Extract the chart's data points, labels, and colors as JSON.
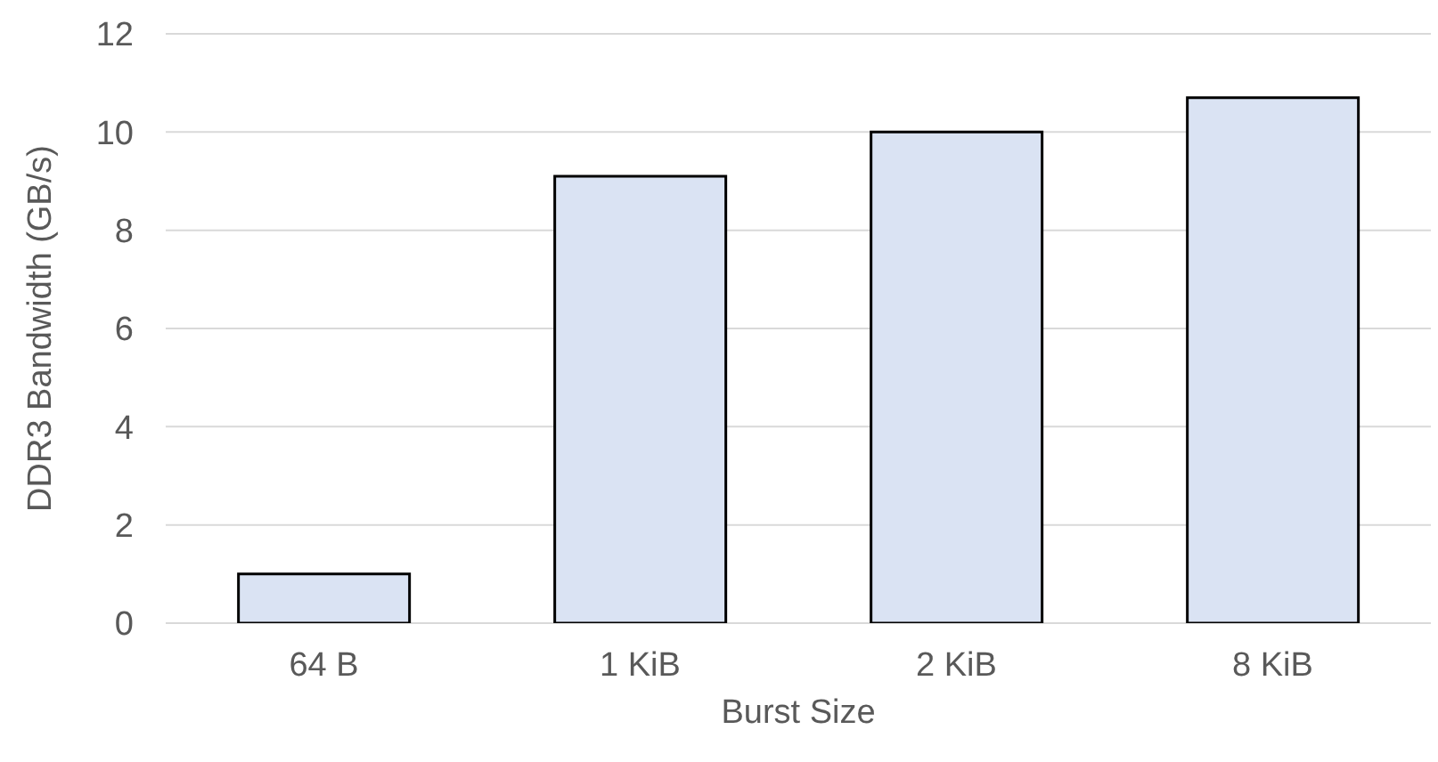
{
  "chart_data": {
    "type": "bar",
    "xlabel": "Burst Size",
    "ylabel": "DDR3 Bandwidth (GB/s)",
    "categories": [
      "64 B",
      "1 KiB",
      "2 KiB",
      "8 KiB"
    ],
    "values": [
      1.0,
      9.1,
      10.0,
      10.7
    ],
    "color": "#dae3f3",
    "ylim": [
      0,
      12
    ],
    "yticks": [
      0,
      2,
      4,
      6,
      8,
      10,
      12
    ],
    "grid": "y",
    "legend": false
  }
}
